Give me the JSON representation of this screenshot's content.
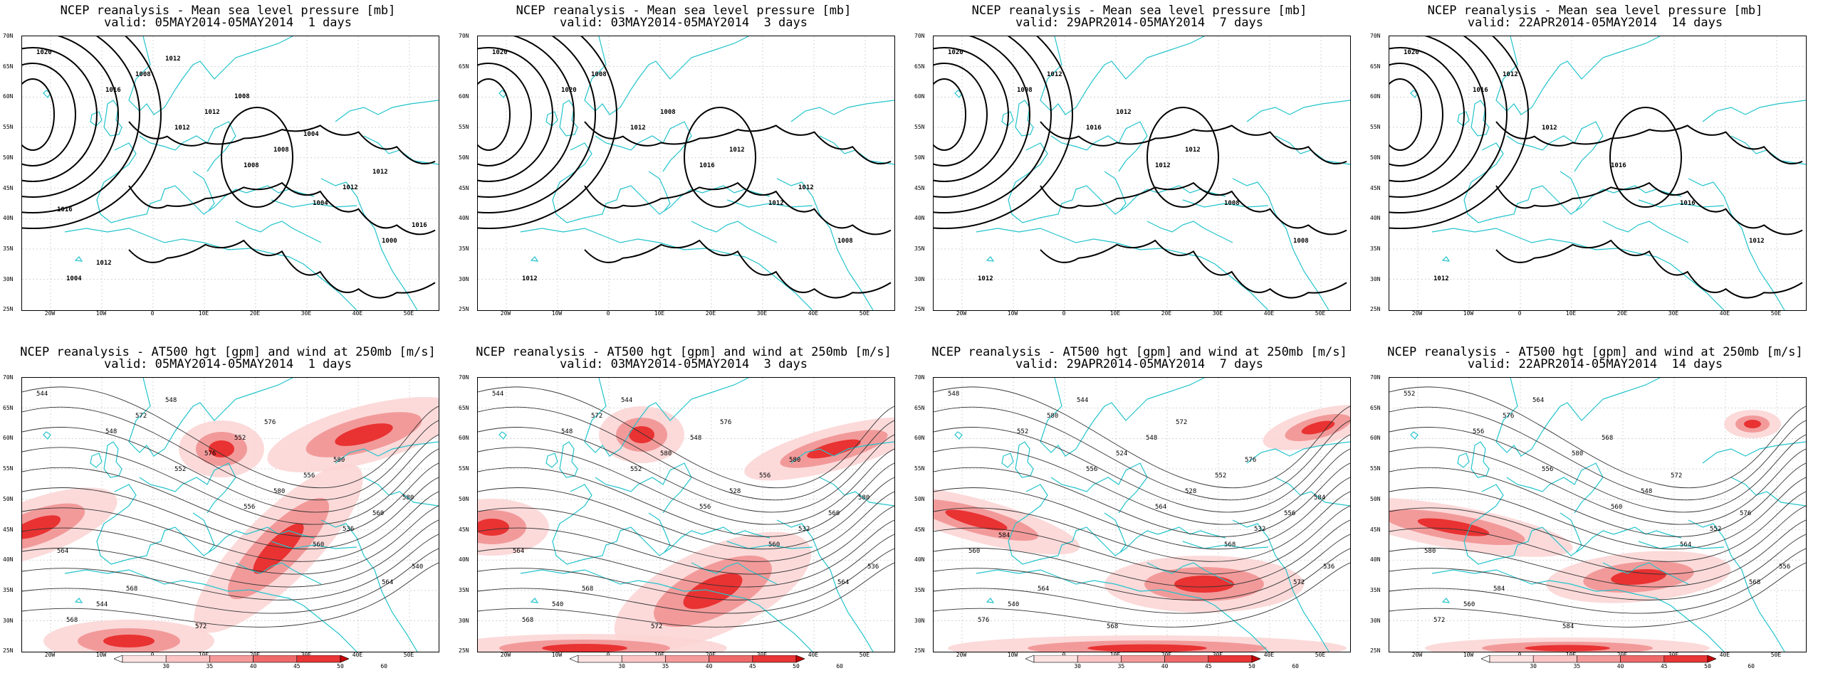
{
  "lat_labels": [
    "70N",
    "65N",
    "60N",
    "55N",
    "50N",
    "45N",
    "40N",
    "35N",
    "30N",
    "25N"
  ],
  "lon_labels": [
    "20W",
    "10W",
    "0",
    "10E",
    "20E",
    "30E",
    "40E",
    "50E"
  ],
  "colorbar_ticks": [
    "30",
    "35",
    "40",
    "45",
    "50",
    "60"
  ],
  "colors": {
    "coast": "#22c4cc",
    "contour": "#000000",
    "wind_light": "#fbd3d3",
    "wind_mid": "#f08e8e",
    "wind_dark": "#e82020"
  },
  "panels": [
    {
      "id": "mslp-1d",
      "line1": "NCEP reanalysis - Mean sea level pressure [mb]",
      "line2": "valid: 05MAY2014-05MAY2014  1 days",
      "contour_labels": [
        "1020",
        "1016",
        "1012",
        "1008",
        "1004",
        "1000",
        "1004",
        "1008",
        "1012",
        "1008",
        "1012",
        "1016",
        "1012",
        "1012",
        "1008",
        "1004",
        "1012",
        "1016"
      ]
    },
    {
      "id": "mslp-3d",
      "line1": "NCEP reanalysis - Mean sea level pressure [mb]",
      "line2": "valid: 03MAY2014-05MAY2014  3 days",
      "contour_labels": [
        "1020",
        "1020",
        "1012",
        "1016",
        "1012",
        "1008",
        "1012",
        "1008",
        "1008",
        "1012",
        "1012"
      ]
    },
    {
      "id": "mslp-7d",
      "line1": "NCEP reanalysis - Mean sea level pressure [mb]",
      "line2": "valid: 29APR2014-05MAY2014  7 days",
      "contour_labels": [
        "1020",
        "1008",
        "1016",
        "1012",
        "1008",
        "1008",
        "1012",
        "1012",
        "1012",
        "1012"
      ]
    },
    {
      "id": "mslp-14d",
      "line1": "NCEP reanalysis - Mean sea level pressure [mb]",
      "line2": "valid: 22APR2014-05MAY2014  14 days",
      "contour_labels": [
        "1020",
        "1016",
        "1012",
        "1016",
        "1016",
        "1012",
        "1012",
        "1012"
      ]
    },
    {
      "id": "z500-1d",
      "line1": "NCEP reanalysis - AT500 hgt [gpm] and wind at 250mb [m/s]",
      "line2": "valid: 05MAY2014-05MAY2014  1 days",
      "contour_labels": [
        "544",
        "548",
        "552",
        "556",
        "560",
        "564",
        "568",
        "572",
        "576",
        "580",
        "536",
        "540",
        "544",
        "548",
        "552",
        "556",
        "560",
        "564",
        "568",
        "572",
        "576",
        "580",
        "580"
      ]
    },
    {
      "id": "z500-3d",
      "line1": "NCEP reanalysis - AT500 hgt [gpm] and wind at 250mb [m/s]",
      "line2": "valid: 03MAY2014-05MAY2014  3 days",
      "contour_labels": [
        "544",
        "548",
        "552",
        "556",
        "560",
        "564",
        "568",
        "572",
        "580",
        "528",
        "532",
        "536",
        "540",
        "544",
        "548",
        "556",
        "560",
        "564",
        "568",
        "572",
        "576",
        "580",
        "580"
      ]
    },
    {
      "id": "z500-7d",
      "line1": "NCEP reanalysis - AT500 hgt [gpm] and wind at 250mb [m/s]",
      "line2": "valid: 29APR2014-05MAY2014  7 days",
      "contour_labels": [
        "548",
        "552",
        "556",
        "564",
        "568",
        "572",
        "576",
        "580",
        "524",
        "528",
        "532",
        "536",
        "540",
        "544",
        "548",
        "552",
        "556",
        "560",
        "564",
        "568",
        "572",
        "576",
        "584",
        "584"
      ]
    },
    {
      "id": "z500-14d",
      "line1": "NCEP reanalysis - AT500 hgt [gpm] and wind at 250mb [m/s]",
      "line2": "valid: 22APR2014-05MAY2014  14 days",
      "contour_labels": [
        "552",
        "556",
        "556",
        "560",
        "564",
        "568",
        "572",
        "576",
        "580",
        "548",
        "552",
        "556",
        "560",
        "564",
        "568",
        "572",
        "576",
        "580",
        "584",
        "584"
      ]
    }
  ]
}
